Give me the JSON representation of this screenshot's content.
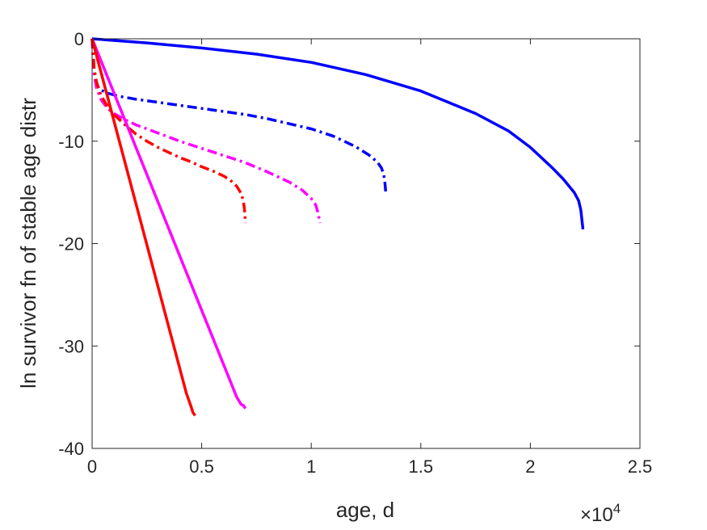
{
  "chart_data": {
    "type": "line",
    "title": "",
    "xlabel": "age, d",
    "ylabel": "ln survivor fn of stable age distr",
    "x_exponent": {
      "base": "×10",
      "power": "4"
    },
    "xlim": [
      0,
      25000
    ],
    "ylim": [
      -40,
      0
    ],
    "x_ticks": [
      0,
      5000,
      10000,
      15000,
      20000,
      25000
    ],
    "x_tick_labels": [
      "0",
      "0.5",
      "1",
      "1.5",
      "2",
      "2.5"
    ],
    "y_ticks": [
      0,
      -10,
      -20,
      -30,
      -40
    ],
    "y_tick_labels": [
      "0",
      "-10",
      "-20",
      "-30",
      "-40"
    ],
    "grid": false,
    "legend": "none",
    "series": [
      {
        "color": "#0000ff",
        "dash": "solid",
        "x": [
          0,
          2500,
          5000,
          7500,
          10000,
          12500,
          15000,
          17500,
          19000,
          20000,
          21000,
          21500,
          22000,
          22200,
          22300,
          22400
        ],
        "y": [
          0,
          -0.4,
          -0.9,
          -1.5,
          -2.3,
          -3.5,
          -5.1,
          -7.3,
          -9.0,
          -10.6,
          -12.6,
          -13.7,
          -15.0,
          -15.8,
          -16.7,
          -18.6
        ]
      },
      {
        "color": "#0000ff",
        "dash": "dashdot",
        "x": [
          0,
          50,
          100,
          200,
          400,
          700,
          1200,
          2000,
          3000,
          4000,
          5000,
          6000,
          7000,
          8000,
          9000,
          10000,
          11000,
          12000,
          12600,
          13000,
          13200,
          13300,
          13350,
          13400
        ],
        "y": [
          0,
          -2.0,
          -3.5,
          -4.5,
          -5.0,
          -5.3,
          -5.6,
          -5.9,
          -6.2,
          -6.5,
          -6.8,
          -7.1,
          -7.4,
          -7.8,
          -8.3,
          -8.8,
          -9.5,
          -10.5,
          -11.3,
          -12.0,
          -12.6,
          -13.2,
          -13.8,
          -15.0
        ]
      },
      {
        "color": "#ff00ff",
        "dash": "dashdot",
        "x": [
          0,
          100,
          200,
          400,
          700,
          1000,
          1500,
          2000,
          3000,
          4000,
          5000,
          6000,
          7000,
          8000,
          9000,
          9600,
          10000,
          10200,
          10300,
          10400
        ],
        "y": [
          0,
          -3.5,
          -4.8,
          -5.9,
          -6.8,
          -7.3,
          -7.9,
          -8.4,
          -9.2,
          -10.0,
          -10.7,
          -11.4,
          -12.1,
          -13.0,
          -14.0,
          -14.8,
          -15.6,
          -16.2,
          -16.9,
          -18.0
        ]
      },
      {
        "color": "#ff0000",
        "dash": "dashdot",
        "x": [
          0,
          100,
          200,
          400,
          700,
          1000,
          1500,
          2000,
          2500,
          3000,
          3500,
          4000,
          4500,
          5000,
          5500,
          6000,
          6300,
          6600,
          6800,
          6900,
          6950,
          7000
        ],
        "y": [
          0,
          -3.0,
          -4.2,
          -5.5,
          -6.6,
          -7.4,
          -8.4,
          -9.3,
          -10.0,
          -10.6,
          -11.1,
          -11.6,
          -12.0,
          -12.5,
          -12.9,
          -13.4,
          -13.8,
          -14.4,
          -15.1,
          -15.8,
          -16.6,
          -18.0
        ]
      },
      {
        "color": "#ff00ff",
        "dash": "solid",
        "x": [
          0,
          6600,
          6800,
          6900,
          7000
        ],
        "y": [
          0,
          -35.0,
          -35.7,
          -35.8,
          -36.1
        ]
      },
      {
        "color": "#ff0000",
        "dash": "solid",
        "x": [
          0,
          4300,
          4500,
          4600,
          4700
        ],
        "y": [
          0,
          -34.6,
          -35.8,
          -36.5,
          -36.8
        ]
      }
    ]
  }
}
